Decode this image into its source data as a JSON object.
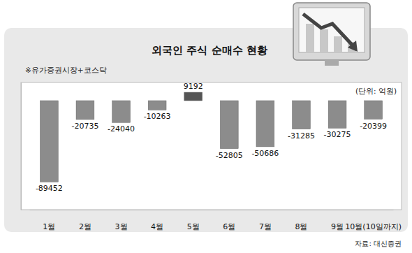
{
  "chart_data": {
    "type": "bar",
    "title": "외국인 주식 순매수 현황",
    "subtitle": "※유가증권시장+코스닥",
    "y_label": "(단위: 억원)",
    "source": "자료: 대신증권",
    "categories": [
      "1월",
      "2월",
      "3월",
      "4월",
      "5월",
      "6월",
      "7월",
      "8월",
      "9월",
      "10월(10일까지)"
    ],
    "values": [
      -89452,
      -20735,
      -24040,
      -10263,
      9192,
      -52805,
      -50686,
      -31285,
      -30275,
      -20399
    ],
    "colors": [
      "#8c8c8c",
      "#8c8c8c",
      "#8c8c8c",
      "#8c8c8c",
      "#555555",
      "#8c8c8c",
      "#8c8c8c",
      "#8c8c8c",
      "#8c8c8c",
      "#8c8c8c"
    ],
    "ylim": [
      -120000,
      20000
    ],
    "yticks": [],
    "grid": false,
    "data_labels": true,
    "tick_labels": "x"
  }
}
